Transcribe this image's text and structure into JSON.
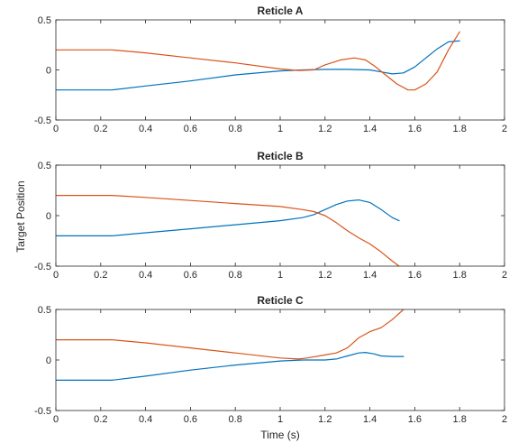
{
  "figure": {
    "xlabel": "Time (s)",
    "ylabel": "Target Position"
  },
  "colors": {
    "series1": "#0072BD",
    "series2": "#D95319",
    "axis": "#262626"
  },
  "chart_data": [
    {
      "type": "line",
      "title": "Reticle A",
      "xlim": [
        0,
        2
      ],
      "ylim": [
        -0.5,
        0.5
      ],
      "xticks": [
        0,
        0.2,
        0.4,
        0.6,
        0.8,
        1,
        1.2,
        1.4,
        1.6,
        1.8,
        2
      ],
      "yticks": [
        -0.5,
        0,
        0.5
      ],
      "grid": false,
      "series": [
        {
          "color": "#0072BD",
          "x": [
            0,
            0.25,
            0.4,
            0.6,
            0.8,
            1.0,
            1.1,
            1.2,
            1.3,
            1.4,
            1.45,
            1.5,
            1.55,
            1.6,
            1.65,
            1.7,
            1.75,
            1.8
          ],
          "y": [
            -0.2,
            -0.2,
            -0.16,
            -0.11,
            -0.05,
            -0.01,
            0.0,
            0.005,
            0.005,
            0.0,
            -0.02,
            -0.04,
            -0.03,
            0.03,
            0.12,
            0.21,
            0.28,
            0.29
          ]
        },
        {
          "color": "#D95319",
          "x": [
            0,
            0.25,
            0.4,
            0.6,
            0.8,
            1.0,
            1.08,
            1.15,
            1.2,
            1.27,
            1.33,
            1.38,
            1.42,
            1.47,
            1.52,
            1.57,
            1.6,
            1.65,
            1.7,
            1.75,
            1.8
          ],
          "y": [
            0.2,
            0.2,
            0.17,
            0.12,
            0.07,
            0.01,
            -0.005,
            0.0,
            0.05,
            0.1,
            0.12,
            0.1,
            0.04,
            -0.05,
            -0.14,
            -0.2,
            -0.2,
            -0.14,
            -0.02,
            0.2,
            0.38
          ]
        }
      ]
    },
    {
      "type": "line",
      "title": "Reticle B",
      "xlim": [
        0,
        2
      ],
      "ylim": [
        -0.5,
        0.5
      ],
      "xticks": [
        0,
        0.2,
        0.4,
        0.6,
        0.8,
        1,
        1.2,
        1.4,
        1.6,
        1.8,
        2
      ],
      "yticks": [
        -0.5,
        0,
        0.5
      ],
      "grid": false,
      "series": [
        {
          "color": "#0072BD",
          "x": [
            0,
            0.25,
            0.4,
            0.6,
            0.8,
            1.0,
            1.1,
            1.15,
            1.2,
            1.25,
            1.3,
            1.35,
            1.4,
            1.45,
            1.5,
            1.53
          ],
          "y": [
            -0.2,
            -0.2,
            -0.17,
            -0.13,
            -0.09,
            -0.05,
            -0.02,
            0.01,
            0.06,
            0.11,
            0.145,
            0.155,
            0.13,
            0.06,
            -0.02,
            -0.05
          ]
        },
        {
          "color": "#D95319",
          "x": [
            0,
            0.25,
            0.4,
            0.6,
            0.8,
            1.0,
            1.1,
            1.15,
            1.2,
            1.25,
            1.3,
            1.35,
            1.4,
            1.45,
            1.5,
            1.53
          ],
          "y": [
            0.2,
            0.2,
            0.18,
            0.15,
            0.12,
            0.09,
            0.06,
            0.04,
            0.0,
            -0.07,
            -0.15,
            -0.22,
            -0.28,
            -0.36,
            -0.45,
            -0.5
          ]
        }
      ]
    },
    {
      "type": "line",
      "title": "Reticle C",
      "xlim": [
        0,
        2
      ],
      "ylim": [
        -0.5,
        0.5
      ],
      "xticks": [
        0,
        0.2,
        0.4,
        0.6,
        0.8,
        1,
        1.2,
        1.4,
        1.6,
        1.8,
        2
      ],
      "yticks": [
        -0.5,
        0,
        0.5
      ],
      "grid": false,
      "series": [
        {
          "color": "#0072BD",
          "x": [
            0,
            0.25,
            0.4,
            0.6,
            0.8,
            1.0,
            1.1,
            1.2,
            1.25,
            1.3,
            1.35,
            1.38,
            1.42,
            1.45,
            1.5,
            1.55
          ],
          "y": [
            -0.2,
            -0.2,
            -0.16,
            -0.1,
            -0.05,
            -0.01,
            0.0,
            0.0,
            0.01,
            0.04,
            0.07,
            0.075,
            0.06,
            0.04,
            0.035,
            0.035
          ]
        },
        {
          "color": "#D95319",
          "x": [
            0,
            0.25,
            0.4,
            0.6,
            0.8,
            1.0,
            1.08,
            1.12,
            1.2,
            1.25,
            1.3,
            1.35,
            1.4,
            1.45,
            1.5,
            1.55
          ],
          "y": [
            0.2,
            0.2,
            0.17,
            0.12,
            0.07,
            0.02,
            0.01,
            0.02,
            0.05,
            0.07,
            0.12,
            0.22,
            0.28,
            0.32,
            0.4,
            0.5
          ]
        }
      ]
    }
  ]
}
